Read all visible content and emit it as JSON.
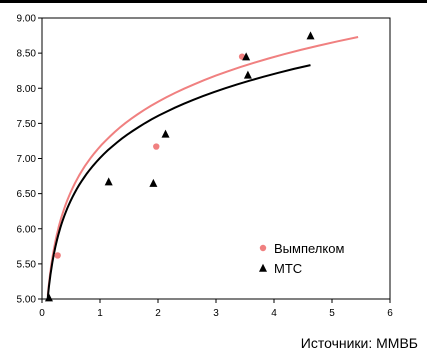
{
  "chart_data": {
    "type": "scatter",
    "title": "",
    "xlabel": "",
    "ylabel": "",
    "xlim": [
      0,
      6
    ],
    "ylim": [
      5.0,
      9.0
    ],
    "x_ticks": [
      "0",
      "1",
      "2",
      "3",
      "4",
      "5",
      "6"
    ],
    "y_ticks": [
      "5.00",
      "5.50",
      "6.00",
      "6.50",
      "7.00",
      "7.50",
      "8.00",
      "8.50",
      "9.00"
    ],
    "grid": false,
    "legend_position": "bottom-right",
    "series": [
      {
        "name": "Вымпелком",
        "marker": "circle",
        "color": "#f08080",
        "points": [
          {
            "x": 0.27,
            "y": 5.62
          },
          {
            "x": 1.97,
            "y": 7.17
          },
          {
            "x": 3.45,
            "y": 8.45
          }
        ],
        "trend": {
          "color": "#f08080",
          "x_start": 0.1,
          "x_end": 5.45,
          "y_at_start": 5.05,
          "y_at_end": 8.73
        }
      },
      {
        "name": "МТС",
        "marker": "triangle",
        "color": "#000000",
        "points": [
          {
            "x": 0.12,
            "y": 5.02
          },
          {
            "x": 1.15,
            "y": 6.67
          },
          {
            "x": 1.92,
            "y": 6.65
          },
          {
            "x": 2.13,
            "y": 7.35
          },
          {
            "x": 3.52,
            "y": 8.45
          },
          {
            "x": 3.55,
            "y": 8.19
          },
          {
            "x": 4.63,
            "y": 8.75
          }
        ],
        "trend": {
          "color": "#000000",
          "x_start": 0.1,
          "x_end": 4.63,
          "y_at_start": 5.02,
          "y_at_end": 8.33
        }
      }
    ]
  },
  "footer": {
    "source": "Источники: ММВБ"
  }
}
